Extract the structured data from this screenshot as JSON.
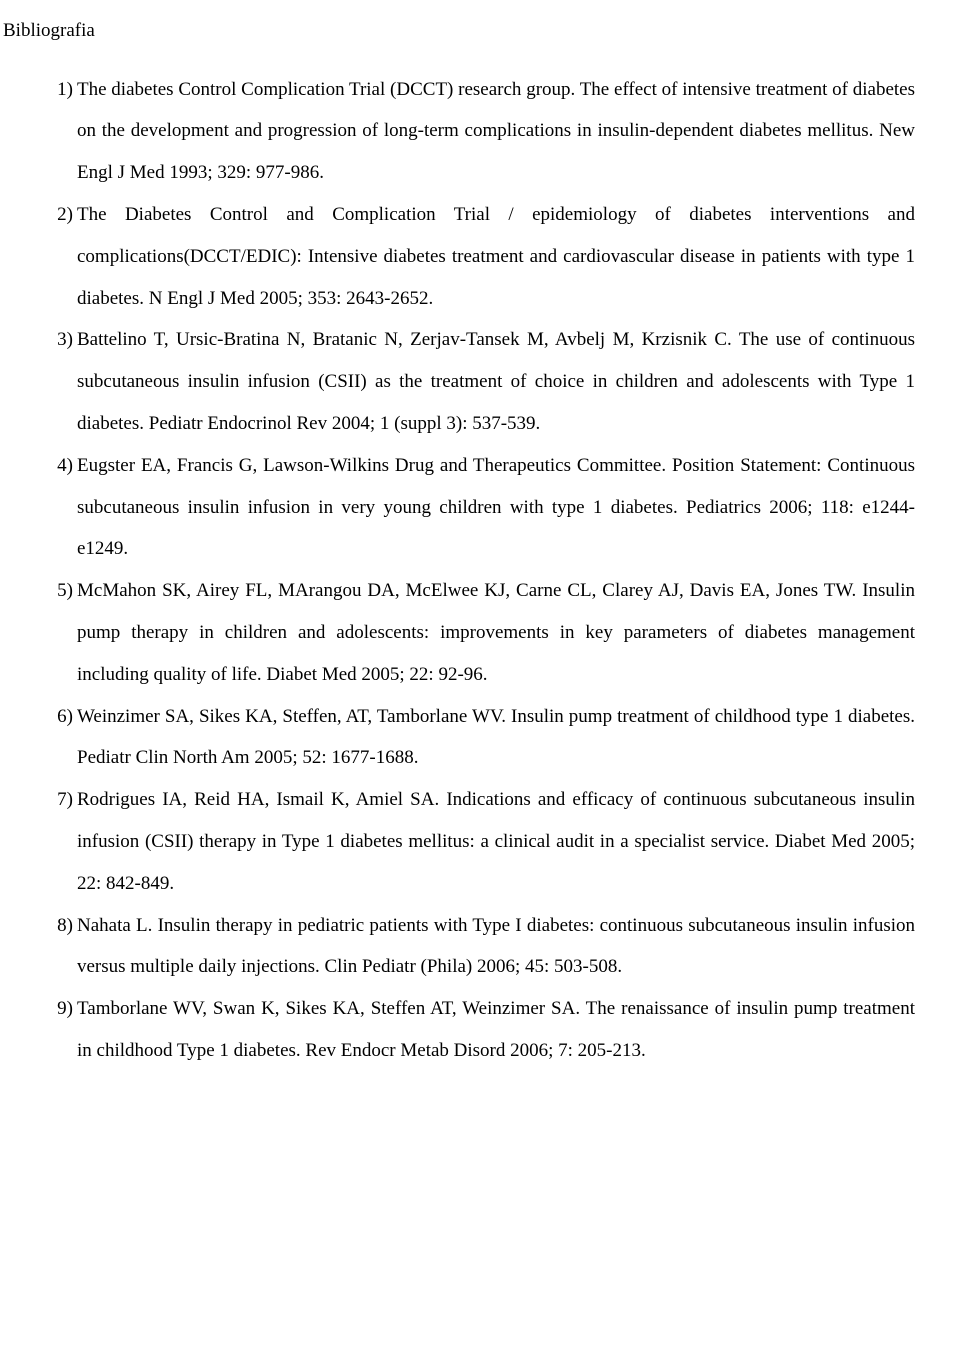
{
  "heading": "Bibliografia",
  "references": [
    {
      "num": "1)",
      "text": "The diabetes Control Complication Trial (DCCT) research group. The effect of intensive treatment of diabetes on the development and progression of long-term complications in insulin-dependent diabetes mellitus. New Engl J Med 1993; 329: 977-986."
    },
    {
      "num": "2)",
      "text": "The Diabetes Control and Complication Trial / epidemiology of diabetes interventions and complications(DCCT/EDIC): Intensive diabetes treatment and cardiovascular disease in patients with type 1 diabetes. N Engl J Med 2005; 353: 2643-2652."
    },
    {
      "num": "3)",
      "text": "Battelino T, Ursic-Bratina N, Bratanic N, Zerjav-Tansek M, Avbelj M, Krzisnik C. The use of continuous subcutaneous insulin infusion (CSII) as the treatment of choice in children and adolescents with Type 1 diabetes. Pediatr Endocrinol Rev 2004; 1 (suppl 3): 537-539."
    },
    {
      "num": "4)",
      "text": "Eugster EA, Francis G, Lawson-Wilkins Drug and Therapeutics Committee. Position Statement: Continuous subcutaneous insulin infusion in very young children with type 1 diabetes. Pediatrics 2006; 118: e1244-e1249."
    },
    {
      "num": "5)",
      "text": "McMahon SK, Airey FL, MArangou DA, McElwee KJ, Carne CL, Clarey AJ, Davis EA, Jones TW. Insulin pump therapy in children and adolescents: improvements in key parameters of diabetes management including quality of life. Diabet Med 2005; 22: 92-96."
    },
    {
      "num": "6)",
      "text": "Weinzimer SA, Sikes KA, Steffen, AT, Tamborlane WV. Insulin pump treatment of childhood type 1 diabetes. Pediatr Clin North Am 2005; 52: 1677-1688."
    },
    {
      "num": "7)",
      "text": "Rodrigues IA, Reid HA, Ismail K, Amiel SA. Indications and efficacy of continuous subcutaneous insulin infusion (CSII) therapy in Type 1 diabetes mellitus: a clinical audit in a specialist service. Diabet Med 2005; 22: 842-849."
    },
    {
      "num": "8)",
      "text": "Nahata L. Insulin therapy in pediatric patients with Type I diabetes: continuous subcutaneous insulin infusion versus multiple daily injections. Clin Pediatr (Phila) 2006; 45: 503-508."
    },
    {
      "num": "9)",
      "text": "Tamborlane WV, Swan K, Sikes KA, Steffen AT, Weinzimer SA. The renaissance of insulin pump treatment in childhood Type 1 diabetes. Rev Endocr Metab Disord 2006; 7: 205-213."
    }
  ],
  "typography": {
    "font_family": "Times New Roman",
    "font_size_pt": 14,
    "line_spacing": 2.2,
    "text_color": "#000000",
    "background_color": "#ffffff"
  }
}
